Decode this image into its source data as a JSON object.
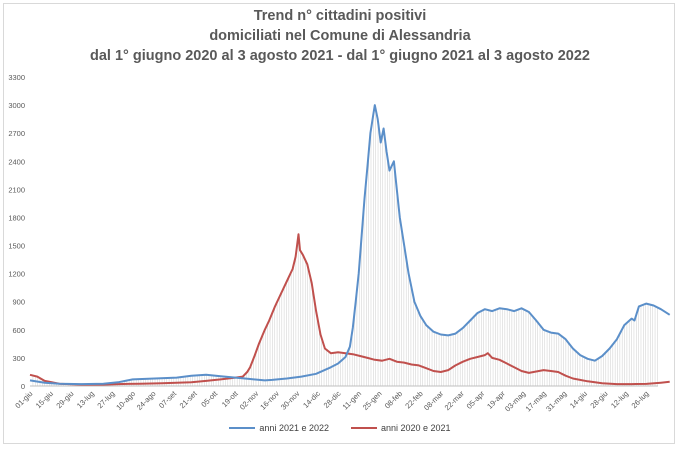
{
  "chart_data": {
    "type": "line",
    "title": "Trend n° cittadini positivi",
    "subtitle_lines": [
      "domiciliati nel Comune di Alessandria",
      "dal 1° giugno 2020 al 3 agosto 2021 - dal 1° giugno 2021 al 3 agosto 2022"
    ],
    "xlabel": "",
    "ylabel": "",
    "ylim": [
      0,
      3300
    ],
    "yticks": [
      0,
      300,
      600,
      900,
      1200,
      1500,
      1800,
      2100,
      2400,
      2700,
      3000,
      3300
    ],
    "xticks": [
      "01-giu",
      "15-giu",
      "29-giu",
      "13-lug",
      "27-lug",
      "10-ago",
      "24-ago",
      "07-set",
      "21-set",
      "05-ott",
      "19-ott",
      "02-nov",
      "16-nov",
      "30-nov",
      "14-dic",
      "28-dic",
      "11-gen",
      "25-gen",
      "08-feb",
      "22-feb",
      "08-mar",
      "22-mar",
      "05-apr",
      "19-apr",
      "03-mag",
      "17-mag",
      "31-mag",
      "14-giu",
      "28-giu",
      "12-lug",
      "26-lug"
    ],
    "x_range_days": [
      0,
      428
    ],
    "grid": false,
    "legend_position": "bottom",
    "series": [
      {
        "name": "anni 2021 e 2022",
        "color": "#5b8fc9",
        "points": [
          [
            0,
            60
          ],
          [
            10,
            35
          ],
          [
            20,
            25
          ],
          [
            35,
            20
          ],
          [
            50,
            25
          ],
          [
            60,
            40
          ],
          [
            70,
            70
          ],
          [
            85,
            80
          ],
          [
            100,
            90
          ],
          [
            110,
            110
          ],
          [
            120,
            120
          ],
          [
            130,
            105
          ],
          [
            140,
            90
          ],
          [
            150,
            75
          ],
          [
            160,
            60
          ],
          [
            165,
            65
          ],
          [
            175,
            80
          ],
          [
            185,
            100
          ],
          [
            195,
            130
          ],
          [
            205,
            200
          ],
          [
            210,
            240
          ],
          [
            215,
            310
          ],
          [
            218,
            420
          ],
          [
            220,
            620
          ],
          [
            222,
            900
          ],
          [
            224,
            1200
          ],
          [
            226,
            1600
          ],
          [
            228,
            2000
          ],
          [
            230,
            2350
          ],
          [
            232,
            2700
          ],
          [
            234,
            2900
          ],
          [
            235,
            3000
          ],
          [
            237,
            2850
          ],
          [
            239,
            2600
          ],
          [
            241,
            2750
          ],
          [
            243,
            2500
          ],
          [
            245,
            2300
          ],
          [
            248,
            2400
          ],
          [
            250,
            2100
          ],
          [
            252,
            1800
          ],
          [
            255,
            1500
          ],
          [
            258,
            1200
          ],
          [
            262,
            900
          ],
          [
            266,
            750
          ],
          [
            270,
            650
          ],
          [
            275,
            580
          ],
          [
            280,
            550
          ],
          [
            285,
            540
          ],
          [
            290,
            560
          ],
          [
            295,
            620
          ],
          [
            300,
            700
          ],
          [
            305,
            780
          ],
          [
            310,
            820
          ],
          [
            315,
            800
          ],
          [
            320,
            830
          ],
          [
            325,
            820
          ],
          [
            330,
            800
          ],
          [
            335,
            830
          ],
          [
            340,
            790
          ],
          [
            345,
            700
          ],
          [
            350,
            600
          ],
          [
            355,
            570
          ],
          [
            360,
            560
          ],
          [
            365,
            500
          ],
          [
            370,
            400
          ],
          [
            375,
            330
          ],
          [
            380,
            290
          ],
          [
            385,
            270
          ],
          [
            390,
            320
          ],
          [
            395,
            400
          ],
          [
            400,
            500
          ],
          [
            405,
            650
          ],
          [
            410,
            720
          ],
          [
            412,
            700
          ],
          [
            415,
            850
          ],
          [
            420,
            880
          ],
          [
            425,
            860
          ],
          [
            430,
            820
          ],
          [
            436,
            760
          ]
        ]
      },
      {
        "name": "anni 2020 e 2021",
        "color": "#c0504d",
        "points": [
          [
            0,
            120
          ],
          [
            5,
            100
          ],
          [
            10,
            55
          ],
          [
            20,
            25
          ],
          [
            35,
            15
          ],
          [
            50,
            15
          ],
          [
            60,
            20
          ],
          [
            75,
            25
          ],
          [
            90,
            30
          ],
          [
            100,
            35
          ],
          [
            110,
            40
          ],
          [
            120,
            55
          ],
          [
            130,
            70
          ],
          [
            140,
            90
          ],
          [
            145,
            100
          ],
          [
            148,
            150
          ],
          [
            150,
            200
          ],
          [
            153,
            320
          ],
          [
            156,
            450
          ],
          [
            160,
            600
          ],
          [
            163,
            700
          ],
          [
            167,
            850
          ],
          [
            170,
            950
          ],
          [
            173,
            1050
          ],
          [
            176,
            1150
          ],
          [
            179,
            1250
          ],
          [
            181,
            1380
          ],
          [
            183,
            1620
          ],
          [
            184,
            1450
          ],
          [
            186,
            1400
          ],
          [
            189,
            1300
          ],
          [
            192,
            1100
          ],
          [
            195,
            800
          ],
          [
            198,
            550
          ],
          [
            201,
            400
          ],
          [
            205,
            350
          ],
          [
            210,
            360
          ],
          [
            215,
            350
          ],
          [
            220,
            340
          ],
          [
            225,
            320
          ],
          [
            230,
            300
          ],
          [
            235,
            280
          ],
          [
            240,
            270
          ],
          [
            245,
            290
          ],
          [
            250,
            260
          ],
          [
            255,
            250
          ],
          [
            260,
            230
          ],
          [
            265,
            220
          ],
          [
            270,
            190
          ],
          [
            275,
            160
          ],
          [
            280,
            150
          ],
          [
            285,
            170
          ],
          [
            290,
            220
          ],
          [
            295,
            260
          ],
          [
            300,
            290
          ],
          [
            305,
            310
          ],
          [
            310,
            330
          ],
          [
            312,
            350
          ],
          [
            315,
            300
          ],
          [
            320,
            280
          ],
          [
            325,
            240
          ],
          [
            330,
            200
          ],
          [
            335,
            160
          ],
          [
            340,
            140
          ],
          [
            345,
            155
          ],
          [
            350,
            170
          ],
          [
            355,
            160
          ],
          [
            360,
            150
          ],
          [
            365,
            110
          ],
          [
            370,
            80
          ],
          [
            380,
            50
          ],
          [
            390,
            30
          ],
          [
            400,
            20
          ],
          [
            410,
            20
          ],
          [
            420,
            22
          ],
          [
            430,
            35
          ],
          [
            436,
            45
          ]
        ]
      }
    ]
  }
}
